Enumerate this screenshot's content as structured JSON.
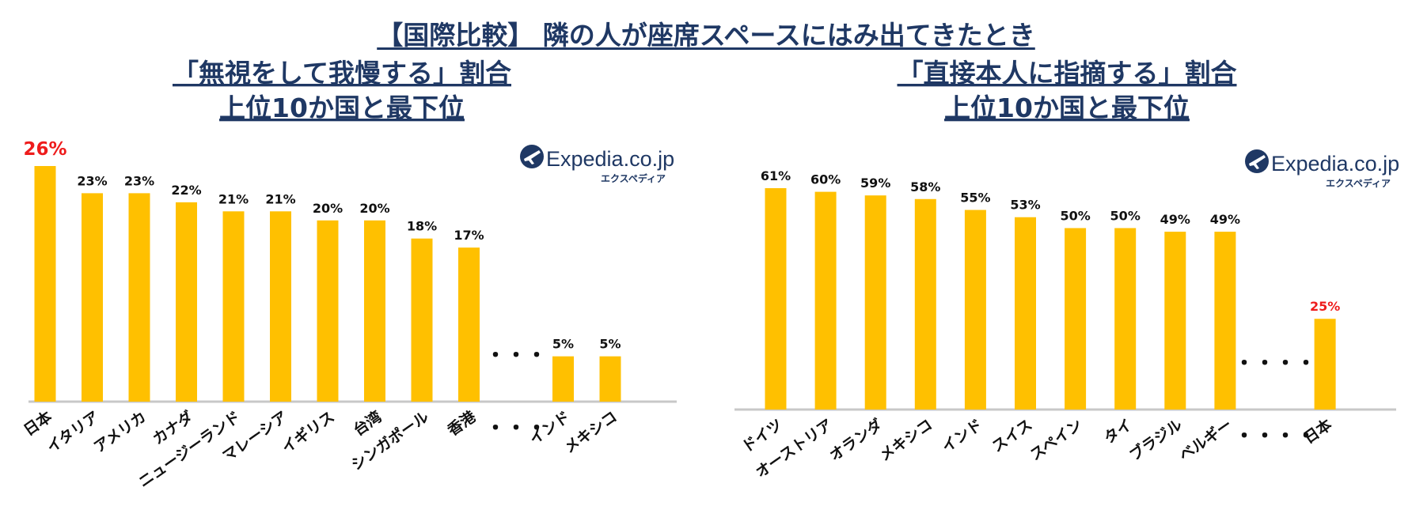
{
  "main_title": "【国際比較】 隣の人が座席スペースにはみ出てきたとき",
  "logo": {
    "brand": "Expedia.co.jp",
    "sub": "エクスペディア"
  },
  "colors": {
    "bar": "#ffc000",
    "highlight": "#ee1c1c",
    "title": "#1f3864",
    "axis": "#c8c8c8"
  },
  "icons": [
    "plane-globe-icon"
  ],
  "chart_data": [
    {
      "type": "bar",
      "title_lines": [
        "「無視をして我慢する」割合",
        "上位10か国と最下位"
      ],
      "categories": [
        "日本",
        "イタリア",
        "アメリカ",
        "カナダ",
        "ニュージーランド",
        "マレーシア",
        "イギリス",
        "台湾",
        "シンガポール",
        "香港",
        "・・・",
        "インド",
        "メキシコ"
      ],
      "values": [
        26,
        23,
        23,
        22,
        21,
        21,
        20,
        20,
        18,
        17,
        null,
        5,
        5
      ],
      "labels": [
        "26%",
        "23%",
        "23%",
        "22%",
        "21%",
        "21%",
        "20%",
        "20%",
        "18%",
        "17%",
        "・・・",
        "5%",
        "5%"
      ],
      "highlight_index": 0,
      "unit": "%",
      "ylim": [
        0,
        26
      ],
      "grid": false,
      "legend": "none"
    },
    {
      "type": "bar",
      "title_lines": [
        "「直接本人に指摘する」割合",
        "上位10か国と最下位"
      ],
      "categories": [
        "ドイツ",
        "オーストリア",
        "オランダ",
        "メキシコ",
        "インド",
        "スイス",
        "スペイン",
        "タイ",
        "ブラジル",
        "ベルギー",
        "・・・・",
        "日本"
      ],
      "values": [
        61,
        60,
        59,
        58,
        55,
        53,
        50,
        50,
        49,
        49,
        null,
        25
      ],
      "labels": [
        "61%",
        "60%",
        "59%",
        "58%",
        "55%",
        "53%",
        "50%",
        "50%",
        "49%",
        "49%",
        "・・・・",
        "25%"
      ],
      "highlight_index": 11,
      "unit": "%",
      "ylim": [
        0,
        61
      ],
      "grid": false,
      "legend": "none"
    }
  ]
}
